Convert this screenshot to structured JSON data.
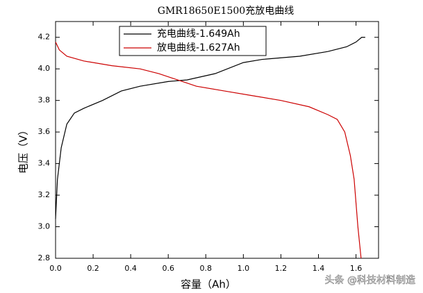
{
  "chart_data": {
    "type": "line",
    "title": "GMR18650E1500充放电曲线",
    "xlabel": "容量（Ah）",
    "ylabel": "电压（V）",
    "series": [
      {
        "name": "充电曲线-1.649Ah",
        "color": "#000000",
        "x": [
          0,
          0.01,
          0.03,
          0.06,
          0.1,
          0.15,
          0.25,
          0.35,
          0.45,
          0.6,
          0.7,
          0.85,
          1.0,
          1.1,
          1.3,
          1.45,
          1.55,
          1.6,
          1.63,
          1.649
        ],
        "values": [
          3.05,
          3.3,
          3.5,
          3.65,
          3.72,
          3.75,
          3.8,
          3.86,
          3.89,
          3.92,
          3.93,
          3.97,
          4.04,
          4.06,
          4.08,
          4.11,
          4.14,
          4.17,
          4.2,
          4.2
        ]
      },
      {
        "name": "放电曲线-1.627Ah",
        "color": "#cc0000",
        "x": [
          0,
          0.02,
          0.06,
          0.15,
          0.3,
          0.45,
          0.55,
          0.65,
          0.75,
          0.9,
          1.05,
          1.2,
          1.35,
          1.45,
          1.5,
          1.54,
          1.57,
          1.59,
          1.61,
          1.627
        ],
        "values": [
          4.17,
          4.12,
          4.08,
          4.05,
          4.02,
          4.0,
          3.97,
          3.93,
          3.89,
          3.86,
          3.83,
          3.8,
          3.76,
          3.71,
          3.68,
          3.6,
          3.45,
          3.3,
          3.0,
          2.8
        ]
      }
    ],
    "xlim": [
      0,
      1.72
    ],
    "ylim": [
      2.8,
      4.3
    ],
    "xticks": [
      {
        "value": 0,
        "label": "0.0"
      },
      0.2,
      0.4,
      0.6,
      0.8,
      {
        "value": 1,
        "label": "1.0"
      },
      1.2,
      1.4,
      1.6
    ],
    "yticks": [
      2.8,
      {
        "value": 3,
        "label": "3.0"
      },
      3.2,
      3.4,
      3.6,
      3.8,
      {
        "value": 4,
        "label": "4.0"
      },
      4.2
    ],
    "grid": false,
    "legend": "top",
    "watermark": "头条 @科技材料制造"
  }
}
